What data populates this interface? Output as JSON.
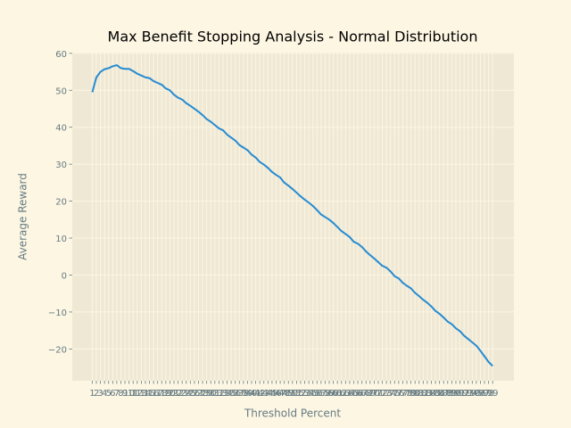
{
  "chart_data": {
    "type": "line",
    "title": "Max Benefit Stopping Analysis - Normal Distribution",
    "x_label": "Threshold Percent",
    "y_label": "Average Reward",
    "x": [
      1,
      2,
      3,
      4,
      5,
      6,
      7,
      8,
      9,
      10,
      11,
      12,
      13,
      14,
      15,
      16,
      17,
      18,
      19,
      20,
      21,
      22,
      23,
      24,
      25,
      26,
      27,
      28,
      29,
      30,
      31,
      32,
      33,
      34,
      35,
      36,
      37,
      38,
      39,
      40,
      41,
      42,
      43,
      44,
      45,
      46,
      47,
      48,
      49,
      50,
      51,
      52,
      53,
      54,
      55,
      56,
      57,
      58,
      59,
      60,
      61,
      62,
      63,
      64,
      65,
      66,
      67,
      68,
      69,
      70,
      71,
      72,
      73,
      74,
      75,
      76,
      77,
      78,
      79,
      80,
      81,
      82,
      83,
      84,
      85,
      86,
      87,
      88,
      89,
      90,
      91,
      92,
      93,
      94,
      95,
      96,
      97,
      98,
      99
    ],
    "values": [
      49.5,
      53.5,
      55.0,
      55.7,
      56.0,
      56.5,
      56.8,
      56.0,
      55.8,
      55.8,
      55.2,
      54.5,
      54.0,
      53.5,
      53.3,
      52.5,
      52.0,
      51.5,
      50.5,
      50.0,
      48.8,
      48.0,
      47.5,
      46.5,
      45.8,
      45.0,
      44.2,
      43.3,
      42.2,
      41.5,
      40.6,
      39.7,
      39.2,
      38.0,
      37.2,
      36.4,
      35.2,
      34.5,
      33.8,
      32.6,
      31.8,
      30.6,
      29.9,
      29.0,
      27.9,
      27.1,
      26.4,
      25.0,
      24.2,
      23.3,
      22.3,
      21.3,
      20.4,
      19.6,
      18.7,
      17.6,
      16.4,
      15.7,
      15.0,
      14.1,
      13.0,
      11.9,
      11.1,
      10.3,
      9.0,
      8.5,
      7.6,
      6.4,
      5.4,
      4.5,
      3.5,
      2.5,
      2.0,
      1.0,
      -0.3,
      -0.9,
      -2.1,
      -2.9,
      -3.6,
      -4.8,
      -5.7,
      -6.7,
      -7.5,
      -8.5,
      -9.7,
      -10.5,
      -11.5,
      -12.6,
      -13.3,
      -14.4,
      -15.2,
      -16.4,
      -17.3,
      -18.2,
      -19.1,
      -20.5,
      -22.0,
      -23.5,
      -24.6
    ],
    "color": "#268bd2",
    "xlim": [
      -3.9,
      104.2
    ],
    "xticks": [
      1,
      2,
      3,
      4,
      5,
      6,
      7,
      8,
      9,
      10,
      11,
      12,
      13,
      14,
      15,
      16,
      17,
      18,
      19,
      20,
      21,
      22,
      23,
      24,
      25,
      26,
      27,
      28,
      29,
      30,
      31,
      32,
      33,
      34,
      35,
      36,
      37,
      38,
      39,
      40,
      41,
      42,
      43,
      44,
      45,
      46,
      47,
      48,
      49,
      50,
      51,
      52,
      53,
      54,
      55,
      56,
      57,
      58,
      59,
      60,
      61,
      62,
      63,
      64,
      65,
      66,
      67,
      68,
      69,
      70,
      71,
      72,
      73,
      74,
      75,
      76,
      77,
      78,
      79,
      80,
      81,
      82,
      83,
      84,
      85,
      86,
      87,
      88,
      89,
      90,
      91,
      92,
      93,
      94,
      95,
      96,
      97,
      98,
      99
    ],
    "ylim": [
      -28.6,
      60.2
    ],
    "yticks": [
      {
        "value": -20,
        "label": "−20"
      },
      {
        "value": -10,
        "label": "−10"
      },
      0,
      10,
      20,
      30,
      40,
      50,
      60
    ],
    "grid": true
  }
}
